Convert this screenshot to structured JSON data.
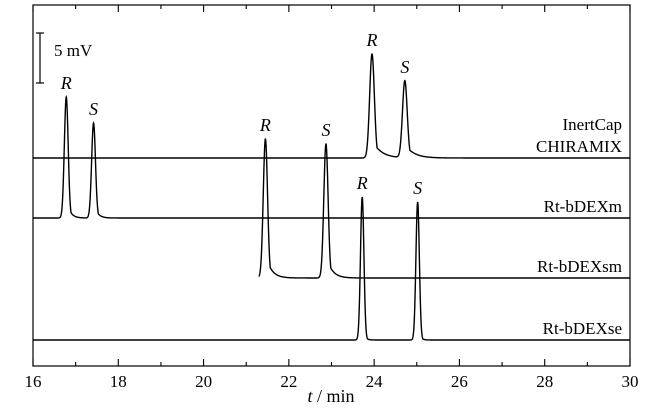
{
  "chart_data": {
    "type": "line",
    "title": "",
    "xlabel_italic": "t",
    "xlabel_rest": " / min",
    "xlim": [
      16,
      30
    ],
    "x_ticks": [
      16,
      18,
      20,
      22,
      24,
      26,
      28,
      30
    ],
    "y_axis_shown": false,
    "y_units": "mV",
    "scale_bar": {
      "label": "5 mV",
      "value_mV": 5
    },
    "grid": false,
    "series": [
      {
        "name": "InertCap CHIRAMIX",
        "label_lines": [
          "InertCap",
          "CHIRAMIX"
        ],
        "baseline_mV": 0,
        "trace_range": [
          16,
          30
        ],
        "peaks": [
          {
            "label": "R",
            "x": 23.95,
            "height_mV": 10.4,
            "width": 0.055,
            "tail": 0.2
          },
          {
            "label": "S",
            "x": 24.72,
            "height_mV": 7.7,
            "width": 0.055,
            "tail": 0.2
          }
        ]
      },
      {
        "name": "Rt-bDEXm",
        "label_lines": [
          "Rt-bDEXm"
        ],
        "baseline_mV": -6.0,
        "trace_range": [
          16,
          30
        ],
        "peaks": [
          {
            "label": "R",
            "x": 16.78,
            "height_mV": 12.1,
            "width": 0.045,
            "tail": 0.08
          },
          {
            "label": "S",
            "x": 17.42,
            "height_mV": 9.5,
            "width": 0.045,
            "tail": 0.08
          }
        ]
      },
      {
        "name": "Rt-bDEXsm",
        "label_lines": [
          "Rt-bDEXsm"
        ],
        "baseline_mV": -12.0,
        "trace_range": [
          21.3,
          30
        ],
        "peaks": [
          {
            "label": "R",
            "x": 21.45,
            "height_mV": 13.9,
            "width": 0.05,
            "tail": 0.13
          },
          {
            "label": "S",
            "x": 22.87,
            "height_mV": 13.4,
            "width": 0.05,
            "tail": 0.13
          }
        ]
      },
      {
        "name": "Rt-bDEXse",
        "label_lines": [
          "Rt-bDEXse"
        ],
        "baseline_mV": -18.2,
        "trace_range": [
          16,
          30
        ],
        "peaks": [
          {
            "label": "R",
            "x": 23.72,
            "height_mV": 14.3,
            "width": 0.04,
            "tail": 0.04
          },
          {
            "label": "S",
            "x": 25.02,
            "height_mV": 13.8,
            "width": 0.04,
            "tail": 0.04
          }
        ]
      }
    ]
  }
}
